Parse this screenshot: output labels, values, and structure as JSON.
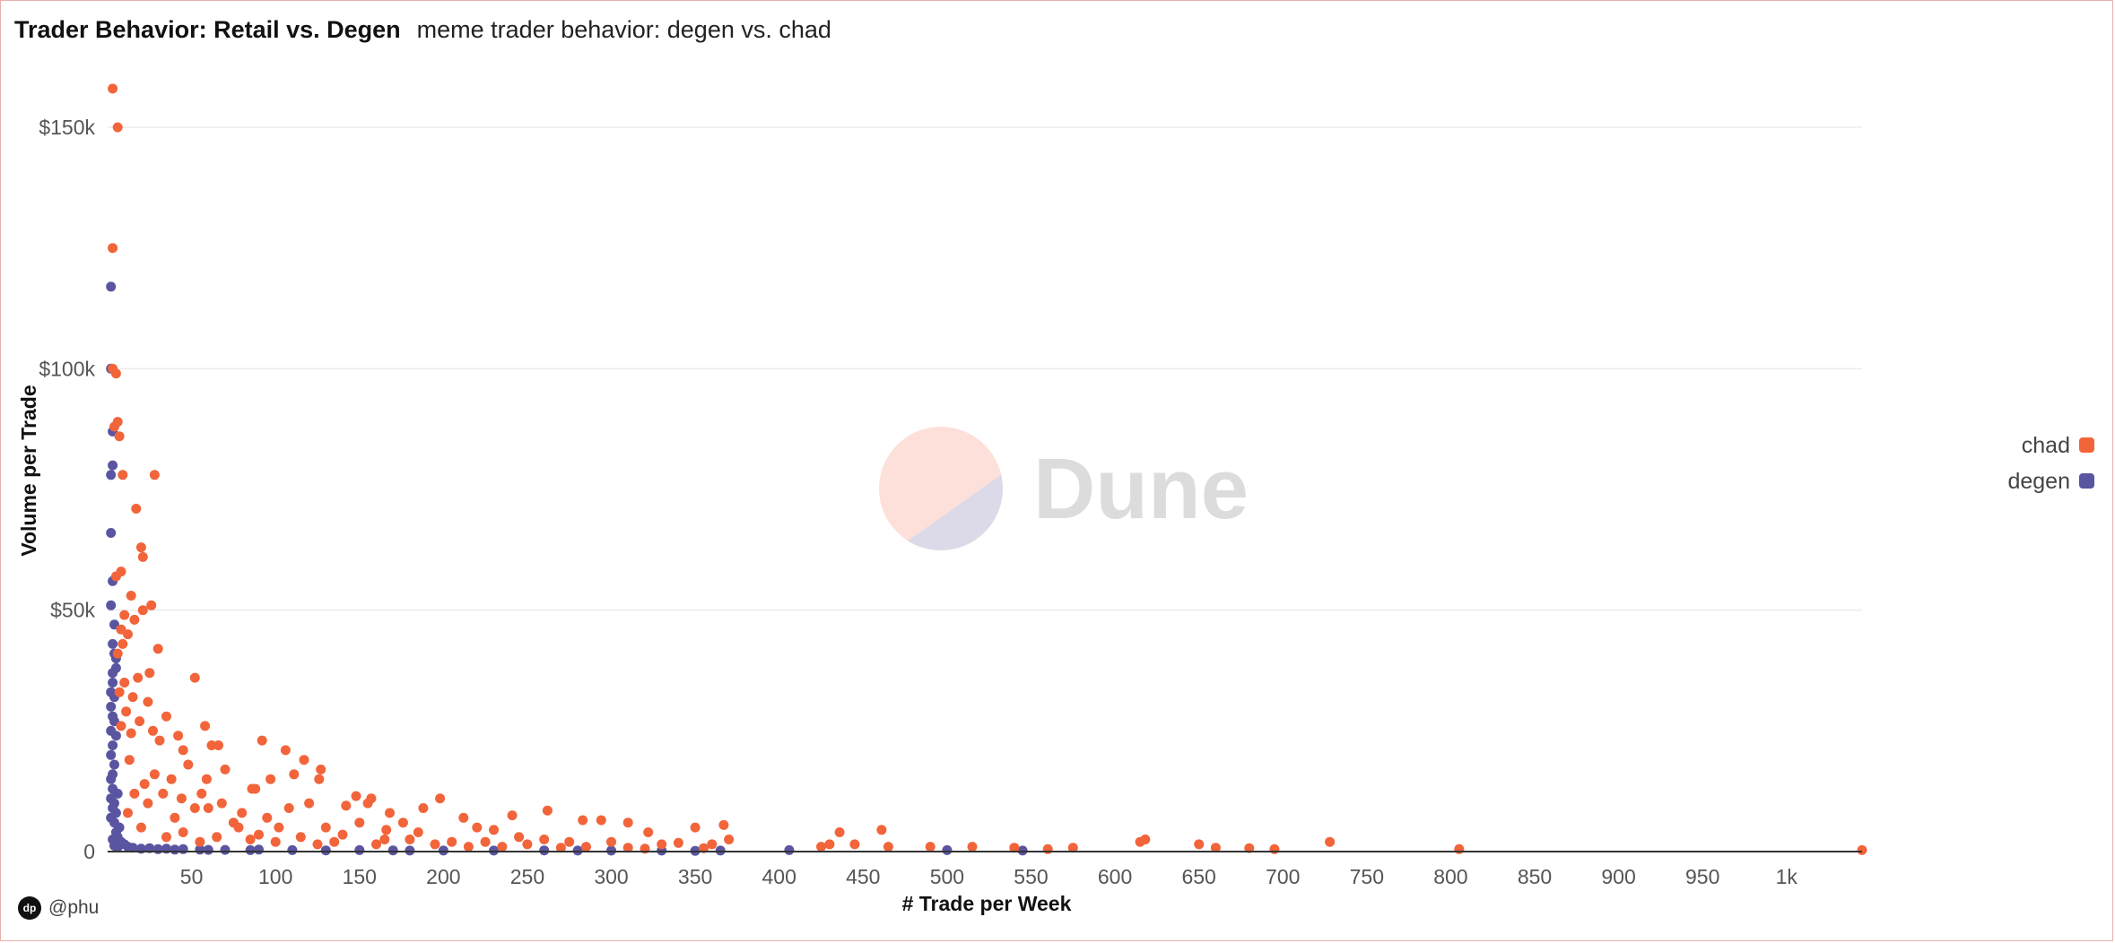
{
  "header": {
    "title": "Trader Behavior: Retail vs. Degen",
    "subtitle": "meme trader behavior: degen vs. chad"
  },
  "footer": {
    "author": "@phu"
  },
  "watermark": {
    "text": "Dune"
  },
  "colors": {
    "chad": "#f2643a",
    "degen": "#5a55a0",
    "grid": "#ececec",
    "axis": "#333333"
  },
  "chart_data": {
    "type": "scatter",
    "title": "Trader Behavior: Retail vs. Degen",
    "subtitle": "meme trader behavior: degen vs. chad",
    "xlabel": "# Trade per Week",
    "ylabel": "Volume per Trade",
    "xlim": [
      0,
      1045
    ],
    "ylim": [
      0,
      160000
    ],
    "x_ticks": [
      50,
      100,
      150,
      200,
      250,
      300,
      350,
      400,
      450,
      500,
      550,
      600,
      650,
      700,
      750,
      800,
      850,
      900,
      950,
      1000
    ],
    "x_tick_labels": [
      "50",
      "100",
      "150",
      "200",
      "250",
      "300",
      "350",
      "400",
      "450",
      "500",
      "550",
      "600",
      "650",
      "700",
      "750",
      "800",
      "850",
      "900",
      "950",
      "1k"
    ],
    "y_ticks": [
      0,
      50000,
      100000,
      150000
    ],
    "y_tick_labels": [
      "0",
      "$50k",
      "$100k",
      "$150k"
    ],
    "grid": true,
    "legend_position": "right",
    "series": [
      {
        "name": "chad",
        "color": "#f2643a",
        "points": [
          [
            3,
            158000
          ],
          [
            6,
            150000
          ],
          [
            3,
            125000
          ],
          [
            3,
            100000
          ],
          [
            5,
            99000
          ],
          [
            6,
            89000
          ],
          [
            4,
            88000
          ],
          [
            7,
            86000
          ],
          [
            9,
            78000
          ],
          [
            28,
            78000
          ],
          [
            17,
            71000
          ],
          [
            20,
            63000
          ],
          [
            21,
            61000
          ],
          [
            8,
            58000
          ],
          [
            5,
            57000
          ],
          [
            14,
            53000
          ],
          [
            26,
            51000
          ],
          [
            21,
            50000
          ],
          [
            10,
            49000
          ],
          [
            16,
            48000
          ],
          [
            8,
            46000
          ],
          [
            12,
            45000
          ],
          [
            9,
            43000
          ],
          [
            30,
            42000
          ],
          [
            6,
            41000
          ],
          [
            25,
            37000
          ],
          [
            18,
            36000
          ],
          [
            52,
            36000
          ],
          [
            10,
            35000
          ],
          [
            7,
            33000
          ],
          [
            15,
            32000
          ],
          [
            24,
            31000
          ],
          [
            11,
            29000
          ],
          [
            35,
            28000
          ],
          [
            19,
            27000
          ],
          [
            58,
            26000
          ],
          [
            8,
            26000
          ],
          [
            27,
            25000
          ],
          [
            14,
            24500
          ],
          [
            42,
            24000
          ],
          [
            31,
            23000
          ],
          [
            62,
            22000
          ],
          [
            92,
            23000
          ],
          [
            66,
            22000
          ],
          [
            106,
            21000
          ],
          [
            45,
            21000
          ],
          [
            117,
            19000
          ],
          [
            13,
            19000
          ],
          [
            70,
            17000
          ],
          [
            127,
            17000
          ],
          [
            97,
            15000
          ],
          [
            126,
            15000
          ],
          [
            111,
            16000
          ],
          [
            59,
            15000
          ],
          [
            86,
            13000
          ],
          [
            88,
            13000
          ],
          [
            56,
            12000
          ],
          [
            33,
            12000
          ],
          [
            148,
            11500
          ],
          [
            157,
            11000
          ],
          [
            198,
            11000
          ],
          [
            155,
            10000
          ],
          [
            142,
            9500
          ],
          [
            188,
            9000
          ],
          [
            168,
            8000
          ],
          [
            262,
            8500
          ],
          [
            241,
            7500
          ],
          [
            212,
            7000
          ],
          [
            283,
            6500
          ],
          [
            294,
            6500
          ],
          [
            310,
            6000
          ],
          [
            176,
            6000
          ],
          [
            220,
            5000
          ],
          [
            230,
            4500
          ],
          [
            166,
            4500
          ],
          [
            350,
            5000
          ],
          [
            367,
            5500
          ],
          [
            322,
            4000
          ],
          [
            436,
            4000
          ],
          [
            461,
            4500
          ],
          [
            130,
            5000
          ],
          [
            75,
            6000
          ],
          [
            80,
            8000
          ],
          [
            95,
            7000
          ],
          [
            108,
            9000
          ],
          [
            120,
            10000
          ],
          [
            60,
            9000
          ],
          [
            40,
            7000
          ],
          [
            48,
            18000
          ],
          [
            38,
            15000
          ],
          [
            22,
            14000
          ],
          [
            68,
            10000
          ],
          [
            24,
            10000
          ],
          [
            150,
            6000
          ],
          [
            102,
            5000
          ],
          [
            185,
            4000
          ],
          [
            245,
            3000
          ],
          [
            260,
            2500
          ],
          [
            275,
            2000
          ],
          [
            300,
            2000
          ],
          [
            330,
            1500
          ],
          [
            340,
            1800
          ],
          [
            360,
            1500
          ],
          [
            370,
            2500
          ],
          [
            425,
            1000
          ],
          [
            430,
            1500
          ],
          [
            445,
            1500
          ],
          [
            465,
            1000
          ],
          [
            490,
            1000
          ],
          [
            515,
            1000
          ],
          [
            540,
            800
          ],
          [
            560,
            500
          ],
          [
            575,
            800
          ],
          [
            615,
            2000
          ],
          [
            618,
            2500
          ],
          [
            650,
            1500
          ],
          [
            660,
            800
          ],
          [
            680,
            700
          ],
          [
            695,
            500
          ],
          [
            728,
            2000
          ],
          [
            805,
            500
          ],
          [
            1045,
            300
          ],
          [
            35,
            3000
          ],
          [
            45,
            4000
          ],
          [
            55,
            2000
          ],
          [
            65,
            3000
          ],
          [
            85,
            2500
          ],
          [
            115,
            3000
          ],
          [
            135,
            2000
          ],
          [
            165,
            2500
          ],
          [
            195,
            1500
          ],
          [
            205,
            2000
          ],
          [
            225,
            2000
          ],
          [
            250,
            1500
          ],
          [
            285,
            1000
          ],
          [
            310,
            800
          ],
          [
            20,
            5000
          ],
          [
            12,
            8000
          ],
          [
            16,
            12000
          ],
          [
            28,
            16000
          ],
          [
            44,
            11000
          ],
          [
            52,
            9000
          ],
          [
            78,
            5000
          ],
          [
            90,
            3500
          ],
          [
            100,
            2000
          ],
          [
            125,
            1500
          ],
          [
            140,
            3500
          ],
          [
            160,
            1500
          ],
          [
            180,
            2500
          ],
          [
            215,
            1000
          ],
          [
            235,
            1000
          ],
          [
            270,
            800
          ],
          [
            320,
            600
          ],
          [
            355,
            700
          ]
        ]
      },
      {
        "name": "degen",
        "color": "#5a55a0",
        "points": [
          [
            2,
            117000
          ],
          [
            2,
            100000
          ],
          [
            3,
            87000
          ],
          [
            3,
            80000
          ],
          [
            2,
            78000
          ],
          [
            2,
            66000
          ],
          [
            3,
            56000
          ],
          [
            2,
            51000
          ],
          [
            4,
            47000
          ],
          [
            3,
            43000
          ],
          [
            4,
            41000
          ],
          [
            5,
            40000
          ],
          [
            5,
            38000
          ],
          [
            3,
            35000
          ],
          [
            4,
            32000
          ],
          [
            2,
            30000
          ],
          [
            3,
            28000
          ],
          [
            2,
            25000
          ],
          [
            3,
            22000
          ],
          [
            2,
            20000
          ],
          [
            4,
            18000
          ],
          [
            2,
            15000
          ],
          [
            3,
            13000
          ],
          [
            2,
            11000
          ],
          [
            3,
            9000
          ],
          [
            2,
            7000
          ],
          [
            4,
            6000
          ],
          [
            5,
            4000
          ],
          [
            6,
            3000
          ],
          [
            8,
            2000
          ],
          [
            10,
            1500
          ],
          [
            12,
            1000
          ],
          [
            15,
            800
          ],
          [
            20,
            600
          ],
          [
            30,
            500
          ],
          [
            40,
            400
          ],
          [
            55,
            400
          ],
          [
            70,
            350
          ],
          [
            85,
            300
          ],
          [
            110,
            300
          ],
          [
            130,
            250
          ],
          [
            170,
            250
          ],
          [
            200,
            200
          ],
          [
            230,
            200
          ],
          [
            280,
            200
          ],
          [
            330,
            200
          ],
          [
            365,
            200
          ],
          [
            406,
            300
          ],
          [
            500,
            300
          ],
          [
            545,
            200
          ],
          [
            3,
            2500
          ],
          [
            4,
            1200
          ],
          [
            6,
            900
          ],
          [
            7,
            5000
          ],
          [
            5,
            8000
          ],
          [
            4,
            10000
          ],
          [
            6,
            12000
          ],
          [
            3,
            16000
          ],
          [
            5,
            24000
          ],
          [
            4,
            27000
          ],
          [
            2,
            33000
          ],
          [
            3,
            37000
          ],
          [
            25,
            700
          ],
          [
            35,
            600
          ],
          [
            45,
            500
          ],
          [
            60,
            350
          ],
          [
            90,
            400
          ],
          [
            150,
            300
          ],
          [
            180,
            200
          ],
          [
            260,
            250
          ],
          [
            300,
            200
          ],
          [
            350,
            150
          ]
        ]
      }
    ]
  }
}
